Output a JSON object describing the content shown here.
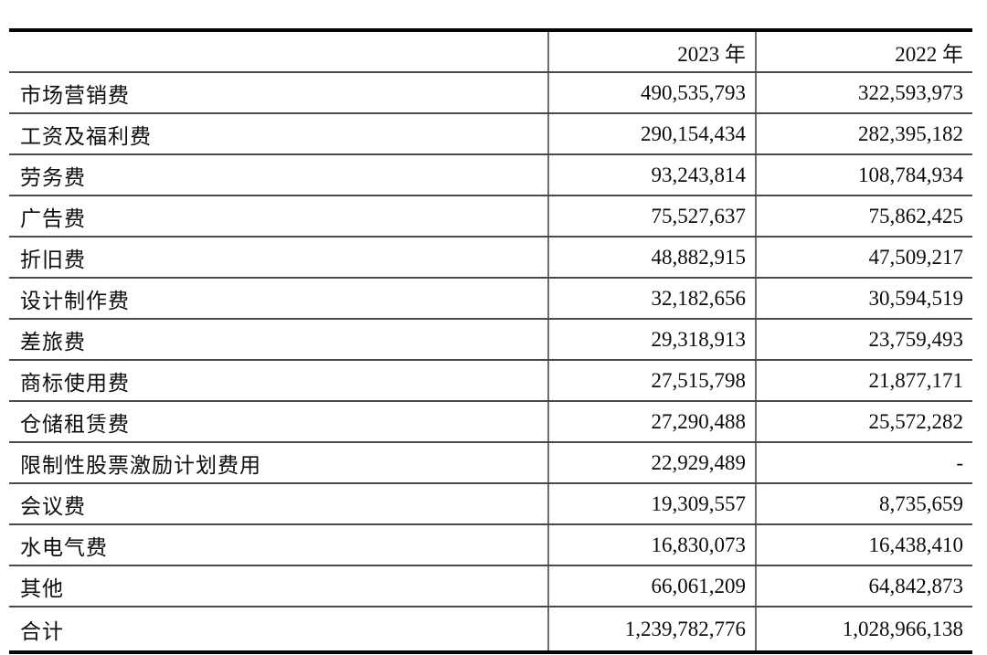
{
  "table": {
    "columns": [
      "",
      "2023 年",
      "2022 年"
    ],
    "rows": [
      {
        "label": "市场营销费",
        "y2023": "490,535,793",
        "y2022": "322,593,973"
      },
      {
        "label": "工资及福利费",
        "y2023": "290,154,434",
        "y2022": "282,395,182"
      },
      {
        "label": "劳务费",
        "y2023": "93,243,814",
        "y2022": "108,784,934"
      },
      {
        "label": "广告费",
        "y2023": "75,527,637",
        "y2022": "75,862,425"
      },
      {
        "label": "折旧费",
        "y2023": "48,882,915",
        "y2022": "47,509,217"
      },
      {
        "label": "设计制作费",
        "y2023": "32,182,656",
        "y2022": "30,594,519"
      },
      {
        "label": "差旅费",
        "y2023": "29,318,913",
        "y2022": "23,759,493"
      },
      {
        "label": "商标使用费",
        "y2023": "27,515,798",
        "y2022": "21,877,171"
      },
      {
        "label": "仓储租赁费",
        "y2023": "27,290,488",
        "y2022": "25,572,282"
      },
      {
        "label": "限制性股票激励计划费用",
        "y2023": "22,929,489",
        "y2022": "-"
      },
      {
        "label": "会议费",
        "y2023": "19,309,557",
        "y2022": "8,735,659"
      },
      {
        "label": "水电气费",
        "y2023": "16,830,073",
        "y2022": "16,438,410"
      },
      {
        "label": "其他",
        "y2023": "66,061,209",
        "y2022": "64,842,873"
      },
      {
        "label": "合计",
        "y2023": "1,239,782,776",
        "y2022": "1,028,966,138"
      }
    ]
  },
  "colors": {
    "background": "#ffffff",
    "text": "#0d0d0d",
    "border_heavy": "#050505",
    "border_row": "#4a4a4a",
    "border_column": "#6e6e6e"
  }
}
